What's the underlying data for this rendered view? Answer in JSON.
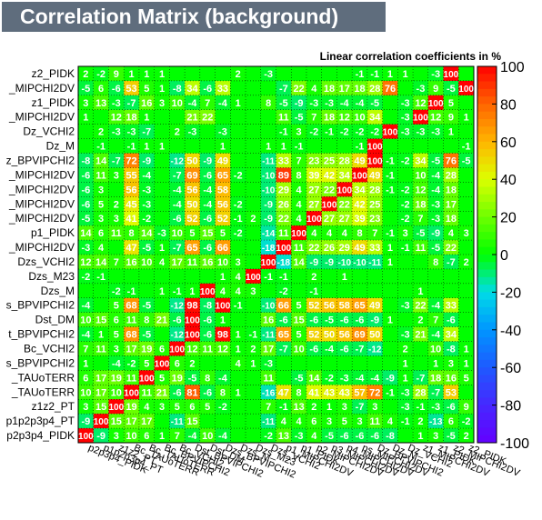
{
  "chart_data": {
    "type": "heatmap",
    "title": "Correlation Matrix (background)",
    "subtitle": "Linear correlation coefficients in %",
    "zlim": [
      -100,
      100
    ],
    "colorbar_ticks": [
      100,
      80,
      60,
      40,
      20,
      0,
      -20,
      -40,
      -60,
      -80,
      -100
    ],
    "y_labels": [
      "z2_PIDK",
      "_MIPCHI2DV",
      "z1_PIDK",
      "_MIPCHI2DV",
      "Dz_VCHI2",
      "Dz_M",
      "z_BPVIPCHI2",
      "_MIPCHI2DV",
      "_MIPCHI2DV",
      "_MIPCHI2DV",
      "_MIPCHI2DV",
      "p1_PIDK",
      "_MIPCHI2DV",
      "Dzs_VCHI2",
      "Dzs_M23",
      "Dzs_M",
      "s_BPVIPCHI2",
      "Dst_DM",
      "t_BPVIPCHI2",
      "Bc_VCHI2",
      "s_BPVIPCHI2",
      "_TAUoTERR",
      "_TAUoTERR",
      "z1z2_PT",
      "p1p2p3p4_PT",
      "p2p3p4_PIDK"
    ],
    "x_labels": [
      "p2p3p4_PIDK",
      "p1p2p3p4_PT",
      "z1z2_PT",
      "Bc_TAUoTERR",
      "Bc_TAUoTERR",
      "Bc_BPVIPCHI2",
      "Bc_VCHI2",
      "Dst_BPVIPCHI2",
      "Dst_DM",
      "Dzs_BPVIPCHI2",
      "Dzs_M",
      "Dzs_M23",
      "Dzs_VCHI2",
      "p1_MIPCHI2DV",
      "p1_PIDK",
      "p2_MIPCHI2DV",
      "p3_MIPCHI2DV",
      "p4_MIPCHI2DV",
      "ps_MIPCHI2DV",
      "Dz_BPVIPCHI2",
      "Dz_M",
      "Dz_VCHI2",
      "z1_MIPCHI2DV",
      "z1_PIDK",
      "z2_MIPCHI2DV",
      "z2_PIDK"
    ],
    "values": [
      [
        2,
        -2,
        9,
        1,
        1,
        1,
        0,
        0,
        0,
        0,
        2,
        0,
        -3,
        0,
        0,
        0,
        0,
        0,
        -1,
        -1,
        1,
        1,
        0,
        -3,
        100,
        0
      ],
      [
        -5,
        6,
        -6,
        53,
        5,
        1,
        -8,
        34,
        -6,
        33,
        0,
        0,
        0,
        -7,
        22,
        4,
        18,
        17,
        18,
        28,
        76,
        0,
        -3,
        9,
        -5,
        100
      ],
      [
        3,
        13,
        -3,
        -7,
        16,
        3,
        10,
        -4,
        7,
        -4,
        1,
        0,
        8,
        -5,
        -9,
        -3,
        -3,
        -4,
        -4,
        -5,
        0,
        -3,
        12,
        100,
        5,
        0
      ],
      [
        1,
        0,
        12,
        18,
        1,
        0,
        0,
        21,
        22,
        0,
        0,
        0,
        0,
        11,
        -5,
        7,
        18,
        12,
        10,
        34,
        0,
        -3,
        100,
        12,
        9,
        1
      ],
      [
        0,
        2,
        -3,
        -3,
        -7,
        0,
        2,
        -3,
        0,
        -3,
        0,
        0,
        0,
        -1,
        3,
        -2,
        -1,
        -2,
        -2,
        -2,
        100,
        -3,
        -3,
        -3,
        1,
        0
      ],
      [
        0,
        -1,
        0,
        -1,
        1,
        1,
        0,
        0,
        0,
        1,
        0,
        0,
        1,
        1,
        -1,
        0,
        0,
        0,
        -1,
        100,
        0,
        0,
        0,
        0,
        0,
        -1
      ],
      [
        -8,
        14,
        -7,
        72,
        -9,
        0,
        -12,
        50,
        -9,
        49,
        0,
        0,
        -11,
        33,
        7,
        23,
        25,
        28,
        49,
        100,
        -1,
        -2,
        34,
        -5,
        76,
        -5
      ],
      [
        -6,
        11,
        3,
        55,
        -4,
        0,
        -7,
        69,
        -6,
        65,
        -2,
        0,
        -10,
        89,
        8,
        39,
        42,
        34,
        100,
        49,
        -1,
        0,
        10,
        -4,
        28,
        0
      ],
      [
        -6,
        3,
        0,
        56,
        -3,
        0,
        -4,
        56,
        -4,
        58,
        0,
        0,
        -10,
        29,
        4,
        27,
        22,
        100,
        34,
        28,
        -1,
        -2,
        12,
        -4,
        18,
        0
      ],
      [
        -6,
        5,
        2,
        45,
        -3,
        0,
        -4,
        50,
        -4,
        56,
        -2,
        0,
        -9,
        26,
        4,
        27,
        100,
        22,
        42,
        25,
        0,
        -2,
        18,
        -3,
        17,
        0
      ],
      [
        -5,
        3,
        3,
        41,
        -2,
        0,
        -6,
        52,
        -6,
        52,
        -1,
        2,
        -9,
        22,
        4,
        100,
        27,
        27,
        39,
        23,
        0,
        -2,
        7,
        -3,
        18,
        0
      ],
      [
        14,
        6,
        11,
        8,
        14,
        -3,
        10,
        5,
        15,
        5,
        -2,
        0,
        -14,
        11,
        100,
        4,
        4,
        4,
        8,
        7,
        -1,
        3,
        -5,
        -9,
        4,
        3
      ],
      [
        -3,
        4,
        0,
        47,
        -5,
        1,
        -7,
        65,
        -6,
        66,
        0,
        0,
        -18,
        100,
        11,
        22,
        26,
        29,
        49,
        33,
        1,
        -1,
        11,
        -5,
        22,
        0
      ],
      [
        12,
        14,
        7,
        16,
        10,
        4,
        17,
        11,
        16,
        10,
        3,
        0,
        100,
        -18,
        14,
        -9,
        -9,
        -10,
        -10,
        -11,
        1,
        0,
        0,
        8,
        -7,
        2
      ],
      [
        -2,
        -1,
        0,
        0,
        0,
        0,
        0,
        0,
        0,
        1,
        4,
        100,
        -1,
        -1,
        0,
        2,
        0,
        1,
        0,
        0,
        0,
        0,
        0,
        0,
        0,
        0
      ],
      [
        0,
        0,
        -2,
        -1,
        0,
        1,
        -1,
        1,
        100,
        4,
        4,
        3,
        0,
        -2,
        0,
        -1,
        0,
        0,
        0,
        0,
        0,
        0,
        1,
        0,
        0,
        0
      ],
      [
        -4,
        0,
        5,
        68,
        -5,
        0,
        -12,
        98,
        -8,
        100,
        -1,
        0,
        -10,
        66,
        5,
        52,
        56,
        58,
        65,
        49,
        0,
        -3,
        22,
        -4,
        33,
        0
      ],
      [
        10,
        15,
        6,
        11,
        8,
        21,
        -6,
        100,
        -6,
        1,
        0,
        0,
        16,
        -6,
        15,
        -6,
        -5,
        -6,
        -6,
        -9,
        1,
        0,
        2,
        7,
        -6,
        0
      ],
      [
        -4,
        1,
        5,
        68,
        -5,
        0,
        -12,
        100,
        -6,
        98,
        1,
        -1,
        -11,
        65,
        5,
        52,
        50,
        56,
        69,
        50,
        0,
        -3,
        21,
        -4,
        34,
        0
      ],
      [
        7,
        11,
        3,
        17,
        19,
        6,
        100,
        12,
        11,
        12,
        1,
        2,
        17,
        -7,
        10,
        -6,
        -4,
        -6,
        -7,
        -12,
        0,
        2,
        0,
        10,
        -8,
        1
      ],
      [
        1,
        0,
        -4,
        -2,
        5,
        100,
        6,
        2,
        0,
        0,
        4,
        1,
        -3,
        0,
        0,
        0,
        0,
        0,
        0,
        0,
        0,
        1,
        0,
        1,
        3,
        1
      ],
      [
        6,
        17,
        19,
        11,
        100,
        5,
        19,
        -5,
        8,
        -4,
        0,
        0,
        11,
        0,
        -5,
        14,
        -2,
        -3,
        -4,
        -4,
        -9,
        1,
        -7,
        18,
        16,
        5
      ],
      [
        10,
        17,
        10,
        100,
        11,
        21,
        -6,
        81,
        -6,
        8,
        1,
        0,
        -16,
        47,
        8,
        41,
        43,
        43,
        57,
        72,
        -1,
        -3,
        28,
        -7,
        53,
        0
      ],
      [
        3,
        15,
        100,
        19,
        4,
        3,
        5,
        6,
        5,
        -2,
        0,
        0,
        7,
        -1,
        13,
        2,
        1,
        3,
        -7,
        3,
        0,
        -3,
        -1,
        -3,
        -6,
        9
      ],
      [
        -9,
        100,
        15,
        17,
        17,
        0,
        -11,
        15,
        0,
        0,
        0,
        0,
        -11,
        4,
        4,
        6,
        3,
        5,
        3,
        11,
        4,
        -1,
        2,
        -13,
        6,
        -2
      ],
      [
        100,
        -9,
        3,
        10,
        6,
        1,
        7,
        -4,
        10,
        -4,
        0,
        0,
        -2,
        13,
        -3,
        4,
        -5,
        -6,
        -6,
        -6,
        -8,
        0,
        1,
        3,
        -5,
        2
      ]
    ]
  }
}
